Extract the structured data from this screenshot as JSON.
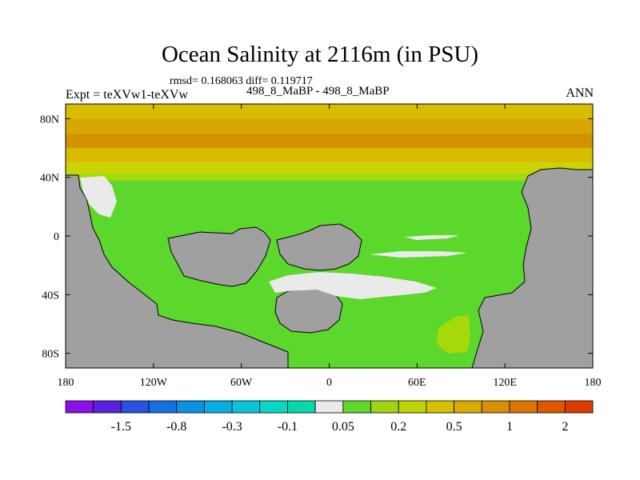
{
  "title": "Ocean Salinity at 2116m (in PSU)",
  "stats": "rmsd= 0.168063 diff= 0.119717",
  "experiment": "Expt = teXVw1-teXVw",
  "comparison": "498_8_MaBP - 498_8_MaBP",
  "season": "ANN",
  "map": {
    "lat_labels": [
      "80N",
      "40N",
      "0",
      "40S",
      "80S"
    ],
    "lon_labels": [
      "180",
      "120W",
      "60W",
      "0",
      "60E",
      "120E",
      "180"
    ],
    "land_color": "#a0a0a0",
    "lat_bands": [
      {
        "lat": [
          90,
          80
        ],
        "color": "#d8bc00"
      },
      {
        "lat": [
          80,
          70
        ],
        "color": "#d7a600"
      },
      {
        "lat": [
          70,
          60
        ],
        "color": "#d29300"
      },
      {
        "lat": [
          60,
          50
        ],
        "color": "#d9bb00"
      },
      {
        "lat": [
          50,
          43
        ],
        "color": "#c9d400"
      },
      {
        "lat": [
          43,
          38
        ],
        "color": "#a6d80a"
      },
      {
        "lat": [
          38,
          -90
        ],
        "color": "#5cd72c"
      }
    ]
  },
  "colorbar": {
    "colors": [
      "#8a12e6",
      "#5a22e0",
      "#2a52e0",
      "#1670e0",
      "#0a92e0",
      "#06aee0",
      "#0ac4da",
      "#0ad8c6",
      "#08d8a8",
      "#eaeaea",
      "#5ed82a",
      "#9ed414",
      "#bed400",
      "#d6c000",
      "#d9aa00",
      "#d99000",
      "#dd7400",
      "#dd5800",
      "#dd3c00"
    ],
    "labels": [
      "-1.5",
      "-0.8",
      "-0.3",
      "-0.1",
      "0.05",
      "0.2",
      "0.5",
      "1",
      "2"
    ]
  }
}
